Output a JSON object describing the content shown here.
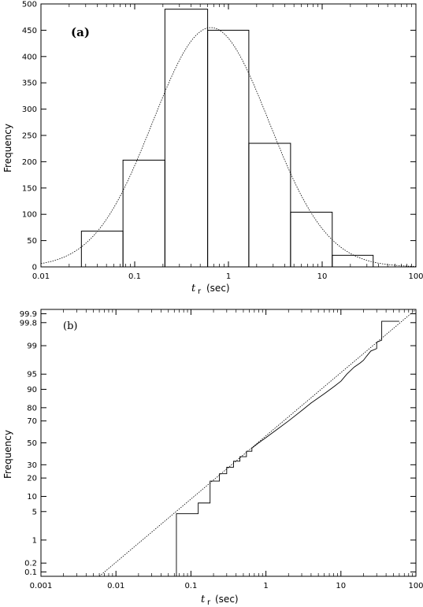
{
  "chart_data": [
    {
      "type": "bar",
      "panel_label": "(a)",
      "xlabel_main": "t",
      "xlabel_sub": "r",
      "xlabel_unit": "(sec)",
      "ylabel": "Frequency",
      "x_scale": "log",
      "xlim": [
        0.01,
        100
      ],
      "ylim": [
        0,
        500
      ],
      "x_ticks": [
        0.01,
        0.1,
        1,
        10,
        100
      ],
      "x_tick_labels": [
        "0.01",
        "0.1",
        "1",
        "10",
        "100"
      ],
      "y_ticks": [
        0,
        50,
        100,
        150,
        200,
        250,
        300,
        350,
        400,
        450,
        500
      ],
      "y_tick_labels": [
        "0",
        "50",
        "100",
        "150",
        "200",
        "250",
        "300",
        "350",
        "400",
        "450",
        "500"
      ],
      "grid": false,
      "histogram_bins": [
        {
          "x_start": 0.027,
          "x_end": 0.075,
          "value": 68
        },
        {
          "x_start": 0.075,
          "x_end": 0.21,
          "value": 203
        },
        {
          "x_start": 0.21,
          "x_end": 0.6,
          "value": 490
        },
        {
          "x_start": 0.6,
          "x_end": 1.65,
          "value": 450
        },
        {
          "x_start": 1.65,
          "x_end": 4.6,
          "value": 235
        },
        {
          "x_start": 4.6,
          "x_end": 12.8,
          "value": 104
        },
        {
          "x_start": 12.8,
          "x_end": 35,
          "value": 22
        }
      ],
      "fit_curve": {
        "style": "dotted",
        "type": "lognormal",
        "peak_x": 0.65,
        "peak_y": 455,
        "sigma_log10": 0.62
      }
    },
    {
      "type": "line",
      "panel_label": "(b)",
      "xlabel_main": "t",
      "xlabel_sub": "r",
      "xlabel_unit": "(sec)",
      "ylabel": "Frequency",
      "x_scale": "log",
      "y_scale": "probability",
      "xlim": [
        0.001,
        100
      ],
      "ylim": [
        0.07,
        99.93
      ],
      "x_ticks": [
        0.001,
        0.01,
        0.1,
        1,
        10,
        100
      ],
      "x_tick_labels": [
        "0.001",
        "0.01",
        "0.1",
        "1",
        "10",
        "100"
      ],
      "y_ticks": [
        0.1,
        0.2,
        1,
        5,
        10,
        20,
        30,
        50,
        70,
        80,
        90,
        95,
        99,
        99.8,
        99.9
      ],
      "y_tick_labels": [
        "0.1",
        "0.2",
        "1",
        "5",
        "10",
        "20",
        "30",
        "50",
        "70",
        "80",
        "90",
        "95",
        "99",
        "99.8",
        "99.9"
      ],
      "grid": false,
      "series": [
        {
          "style": "solid-step",
          "x": [
            0.064,
            0.064,
            0.125,
            0.125,
            0.18,
            0.18,
            0.24,
            0.24,
            0.3,
            0.3,
            0.37,
            0.37,
            0.45,
            0.45,
            0.55,
            0.55,
            0.65,
            0.65,
            0.8,
            1.0,
            1.5,
            2.0,
            3.0,
            4.0,
            6.0,
            8.0,
            10.0,
            12.0,
            15.0,
            18.0,
            20.0,
            22.0,
            25.0,
            30.0,
            30.0,
            35.0,
            35.0,
            60.0
          ],
          "y": [
            0.07,
            4.5,
            4.5,
            7.5,
            7.5,
            18,
            18,
            23,
            23,
            28,
            28,
            33,
            33,
            37,
            37,
            42,
            42,
            45,
            50,
            55,
            64,
            70,
            78,
            83,
            88,
            91,
            93,
            95,
            96.5,
            97.2,
            97.6,
            98.1,
            98.6,
            98.8,
            99.2,
            99.3,
            99.82,
            99.82
          ]
        },
        {
          "style": "dotted",
          "x": [
            0.006,
            100
          ],
          "y": [
            0.07,
            99.93
          ]
        }
      ]
    }
  ]
}
